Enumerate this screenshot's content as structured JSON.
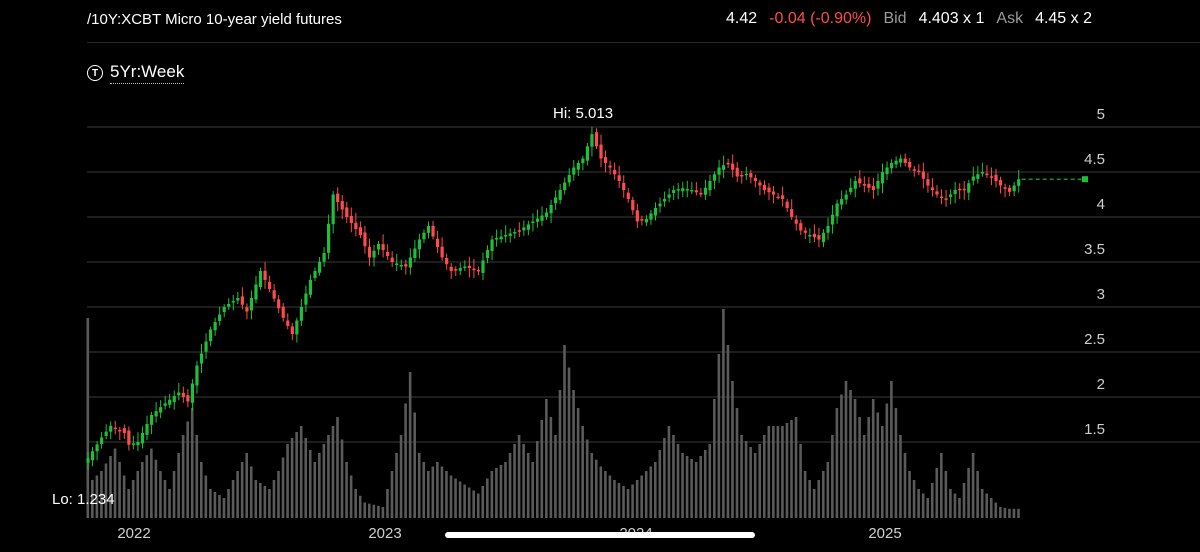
{
  "header": {
    "symbol": "/10Y:XCBT Micro 10-year yield futures",
    "last": "4.42",
    "change": "-0.04 (-0.90%)",
    "bid_label": "Bid",
    "bid": "4.403 x 1",
    "ask_label": "Ask",
    "ask": "4.45 x 2"
  },
  "timeframe": {
    "icon": "t-circle-icon",
    "label": "5Yr:Week"
  },
  "colors": {
    "up": "#1fbf3a",
    "down": "#ff4b4b",
    "volume": "#5a5a5a",
    "grid": "#3a3a3a",
    "last_line": "#1fbf3a"
  },
  "chart_data": {
    "type": "candlestick",
    "y_ticks": [
      "1.5",
      "2",
      "2.5",
      "3",
      "3.5",
      "4",
      "4.5",
      "5"
    ],
    "x_labels": [
      "2022",
      "2023",
      "2024",
      "2025"
    ],
    "ylim": [
      1.0,
      5.12
    ],
    "hi_label": "Hi: 5.013",
    "lo_label": "Lo: 1.234",
    "last_price": 4.42,
    "anchors": [
      [
        0,
        1.32
      ],
      [
        3,
        1.55
      ],
      [
        5,
        1.68
      ],
      [
        8,
        1.6
      ],
      [
        9,
        1.47
      ],
      [
        11,
        1.5
      ],
      [
        14,
        1.8
      ],
      [
        17,
        1.93
      ],
      [
        20,
        2.05
      ],
      [
        22,
        1.95
      ],
      [
        24,
        2.35
      ],
      [
        27,
        2.75
      ],
      [
        30,
        3.0
      ],
      [
        33,
        3.1
      ],
      [
        35,
        2.95
      ],
      [
        38,
        3.4
      ],
      [
        40,
        3.2
      ],
      [
        43,
        2.88
      ],
      [
        45,
        2.7
      ],
      [
        49,
        3.3
      ],
      [
        52,
        3.6
      ],
      [
        54,
        4.25
      ],
      [
        57,
        4.0
      ],
      [
        60,
        3.8
      ],
      [
        62,
        3.55
      ],
      [
        64,
        3.7
      ],
      [
        67,
        3.5
      ],
      [
        70,
        3.45
      ],
      [
        73,
        3.75
      ],
      [
        75,
        3.9
      ],
      [
        78,
        3.55
      ],
      [
        80,
        3.4
      ],
      [
        83,
        3.45
      ],
      [
        86,
        3.4
      ],
      [
        89,
        3.75
      ],
      [
        92,
        3.8
      ],
      [
        95,
        3.85
      ],
      [
        98,
        3.95
      ],
      [
        101,
        4.05
      ],
      [
        104,
        4.3
      ],
      [
        107,
        4.55
      ],
      [
        109,
        4.65
      ],
      [
        111,
        4.92
      ],
      [
        113,
        4.65
      ],
      [
        115,
        4.55
      ],
      [
        117,
        4.4
      ],
      [
        119,
        4.2
      ],
      [
        121,
        3.95
      ],
      [
        123,
        3.98
      ],
      [
        125,
        4.1
      ],
      [
        127,
        4.2
      ],
      [
        129,
        4.3
      ],
      [
        131,
        4.32
      ],
      [
        133,
        4.3
      ],
      [
        135,
        4.25
      ],
      [
        137,
        4.4
      ],
      [
        139,
        4.55
      ],
      [
        141,
        4.6
      ],
      [
        143,
        4.45
      ],
      [
        145,
        4.48
      ],
      [
        147,
        4.4
      ],
      [
        149,
        4.3
      ],
      [
        151,
        4.25
      ],
      [
        153,
        4.2
      ],
      [
        155,
        4.0
      ],
      [
        157,
        3.85
      ],
      [
        159,
        3.8
      ],
      [
        161,
        3.75
      ],
      [
        163,
        3.9
      ],
      [
        165,
        4.15
      ],
      [
        167,
        4.25
      ],
      [
        169,
        4.4
      ],
      [
        171,
        4.35
      ],
      [
        173,
        4.3
      ],
      [
        175,
        4.5
      ],
      [
        177,
        4.6
      ],
      [
        179,
        4.65
      ],
      [
        181,
        4.55
      ],
      [
        183,
        4.5
      ],
      [
        185,
        4.35
      ],
      [
        187,
        4.25
      ],
      [
        189,
        4.2
      ],
      [
        191,
        4.3
      ],
      [
        193,
        4.3
      ],
      [
        195,
        4.45
      ],
      [
        197,
        4.5
      ],
      [
        199,
        4.45
      ],
      [
        201,
        4.35
      ],
      [
        203,
        4.28
      ],
      [
        205,
        4.42
      ]
    ],
    "volume_anchors": [
      [
        0,
        3.2
      ],
      [
        1,
        1.4
      ],
      [
        3,
        1.5
      ],
      [
        6,
        1.75
      ],
      [
        9,
        1.3
      ],
      [
        12,
        1.6
      ],
      [
        14,
        1.75
      ],
      [
        16,
        1.5
      ],
      [
        18,
        1.3
      ],
      [
        21,
        1.9
      ],
      [
        23,
        2.2
      ],
      [
        25,
        1.6
      ],
      [
        27,
        1.3
      ],
      [
        30,
        1.2
      ],
      [
        33,
        1.5
      ],
      [
        35,
        1.7
      ],
      [
        37,
        1.4
      ],
      [
        40,
        1.3
      ],
      [
        42,
        1.5
      ],
      [
        44,
        1.8
      ],
      [
        47,
        2.0
      ],
      [
        50,
        1.6
      ],
      [
        53,
        1.9
      ],
      [
        55,
        2.1
      ],
      [
        57,
        1.6
      ],
      [
        59,
        1.3
      ],
      [
        61,
        1.15
      ],
      [
        65,
        1.1
      ],
      [
        67,
        1.5
      ],
      [
        69,
        1.9
      ],
      [
        71,
        2.6
      ],
      [
        73,
        1.7
      ],
      [
        75,
        1.5
      ],
      [
        77,
        1.6
      ],
      [
        80,
        1.45
      ],
      [
        83,
        1.35
      ],
      [
        86,
        1.25
      ],
      [
        89,
        1.5
      ],
      [
        92,
        1.6
      ],
      [
        95,
        1.9
      ],
      [
        98,
        1.6
      ],
      [
        101,
        2.3
      ],
      [
        103,
        1.9
      ],
      [
        105,
        2.9
      ],
      [
        107,
        2.4
      ],
      [
        109,
        2.0
      ],
      [
        111,
        1.7
      ],
      [
        113,
        1.55
      ],
      [
        116,
        1.4
      ],
      [
        119,
        1.3
      ],
      [
        122,
        1.45
      ],
      [
        125,
        1.6
      ],
      [
        128,
        2.0
      ],
      [
        131,
        1.7
      ],
      [
        134,
        1.6
      ],
      [
        137,
        1.8
      ],
      [
        140,
        3.3
      ],
      [
        142,
        2.5
      ],
      [
        144,
        1.9
      ],
      [
        147,
        1.7
      ],
      [
        150,
        2.0
      ],
      [
        153,
        2.0
      ],
      [
        156,
        2.1
      ],
      [
        158,
        1.5
      ],
      [
        160,
        1.3
      ],
      [
        163,
        1.6
      ],
      [
        165,
        2.2
      ],
      [
        167,
        2.5
      ],
      [
        169,
        2.3
      ],
      [
        171,
        1.9
      ],
      [
        173,
        2.3
      ],
      [
        175,
        2.0
      ],
      [
        177,
        2.5
      ],
      [
        179,
        1.9
      ],
      [
        181,
        1.5
      ],
      [
        183,
        1.3
      ],
      [
        185,
        1.2
      ],
      [
        188,
        1.7
      ],
      [
        190,
        1.3
      ],
      [
        192,
        1.2
      ],
      [
        195,
        1.7
      ],
      [
        197,
        1.3
      ],
      [
        199,
        1.2
      ],
      [
        201,
        1.1
      ],
      [
        203,
        1.08
      ],
      [
        205,
        1.08
      ]
    ]
  }
}
